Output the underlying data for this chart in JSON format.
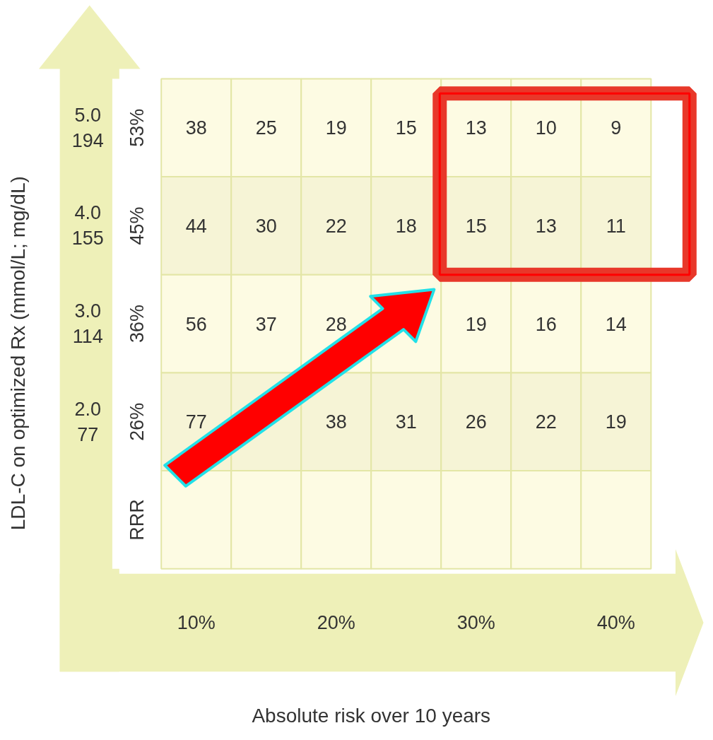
{
  "chart_data": {
    "type": "heatmap",
    "xlabel": "Absolute risk over 10 years",
    "ylabel": "LDL-C on optimized Rx (mmol/L; mg/dL)",
    "categories": [
      "10%",
      null,
      "20%",
      null,
      "30%",
      null,
      "40%"
    ],
    "y_categories": [
      "53%",
      "45%",
      "36%",
      "26%",
      "RRR"
    ],
    "y2_categories": [
      "5.0\n194",
      "4.0\n155",
      "3.0\n114",
      "2.0\n77",
      null
    ],
    "cells": [
      [
        38,
        25,
        19,
        15,
        13,
        10,
        9
      ],
      [
        44,
        30,
        22,
        18,
        15,
        13,
        11
      ],
      [
        56,
        37,
        28,
        null,
        19,
        16,
        14
      ],
      [
        77,
        null,
        38,
        31,
        26,
        22,
        19
      ],
      [
        null,
        null,
        null,
        null,
        null,
        null,
        null
      ]
    ],
    "data_labels": true
  }
}
